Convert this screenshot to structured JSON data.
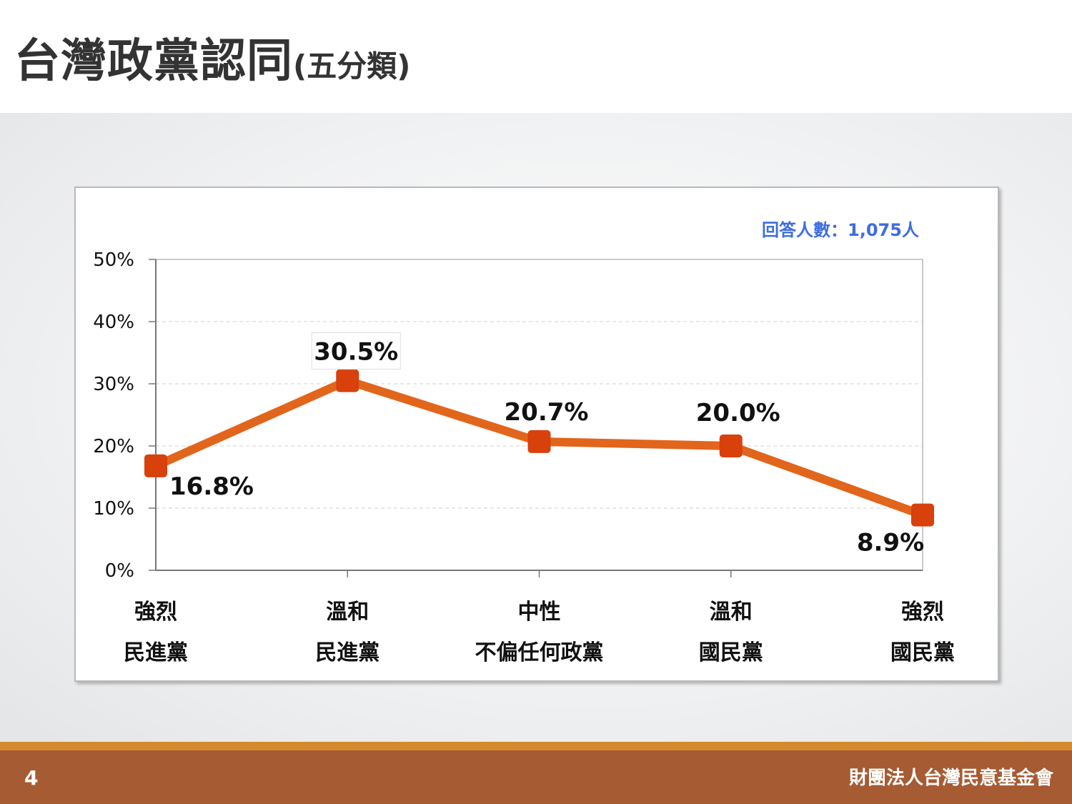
{
  "slide": {
    "title": "台灣政黨認同",
    "title_suffix": "(五分類)",
    "page_number": "4",
    "organization": "財團法人台灣民意基金會",
    "respondents": "回答人數：1,075人"
  },
  "colors": {
    "line": "#e2651c",
    "marker": "#d8400c",
    "footer": "#a65b33",
    "footer_accent": "#d38a2c",
    "respondents_text": "#3d6ce0"
  },
  "chart_data": {
    "type": "line",
    "categories": [
      [
        "強烈",
        "民進黨"
      ],
      [
        "溫和",
        "民進黨"
      ],
      [
        "中性",
        "不偏任何政黨"
      ],
      [
        "溫和",
        "國民黨"
      ],
      [
        "強烈",
        "國民黨"
      ]
    ],
    "values": [
      16.8,
      30.5,
      20.7,
      20.0,
      8.9
    ],
    "data_labels": [
      "16.8%",
      "30.5%",
      "20.7%",
      "20.0%",
      "8.9%"
    ],
    "yticks": [
      "0%",
      "10%",
      "20%",
      "30%",
      "40%",
      "50%"
    ],
    "ylim": [
      0,
      50
    ],
    "grid": true,
    "legend": "none"
  }
}
